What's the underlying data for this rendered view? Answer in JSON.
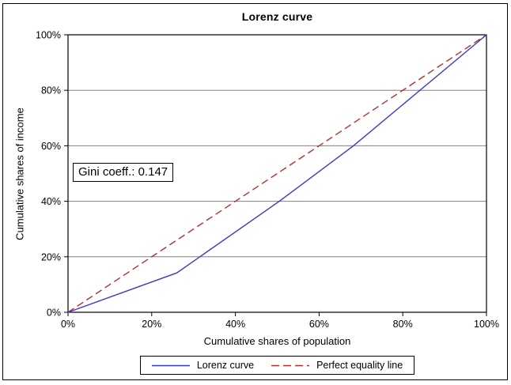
{
  "window": {
    "background": "#ffffff",
    "border_color": "#000000"
  },
  "chart_data": {
    "type": "line",
    "title": "Lorenz curve",
    "xlabel": "Cumulative shares of population",
    "ylabel": "Cumulative shares of income",
    "xlim": [
      0,
      1
    ],
    "ylim": [
      0,
      1
    ],
    "grid": "horizontal gridlines at 20% steps",
    "grid_color": "#808080",
    "frame_color": "#000000",
    "legend_position": "bottom-center boxed",
    "x_ticks": [
      {
        "value": 0,
        "label": "0%"
      },
      {
        "value": 0.2,
        "label": "20%"
      },
      {
        "value": 0.4,
        "label": "40%"
      },
      {
        "value": 0.6,
        "label": "60%"
      },
      {
        "value": 0.8,
        "label": "80%"
      },
      {
        "value": 1,
        "label": "100%"
      }
    ],
    "y_ticks": [
      {
        "value": 0,
        "label": "0%"
      },
      {
        "value": 0.2,
        "label": "20%"
      },
      {
        "value": 0.4,
        "label": "40%"
      },
      {
        "value": 0.6,
        "label": "60%"
      },
      {
        "value": 0.8,
        "label": "80%"
      },
      {
        "value": 1,
        "label": "100%"
      }
    ],
    "series": [
      {
        "name": "Lorenz curve",
        "color": "#3939cc",
        "dash": null,
        "points": [
          [
            0,
            0
          ],
          [
            0.26,
            0.142
          ],
          [
            0.505,
            0.4
          ],
          [
            0.682,
            0.6
          ],
          [
            1,
            1
          ]
        ]
      },
      {
        "name": "Perfect equality line",
        "color": "#b23030",
        "dash": "9,5",
        "points": [
          [
            0,
            0
          ],
          [
            1,
            1
          ]
        ]
      }
    ],
    "annotation": {
      "text": "Gini coeff.: 0.147",
      "gini_value": 0.147
    }
  }
}
